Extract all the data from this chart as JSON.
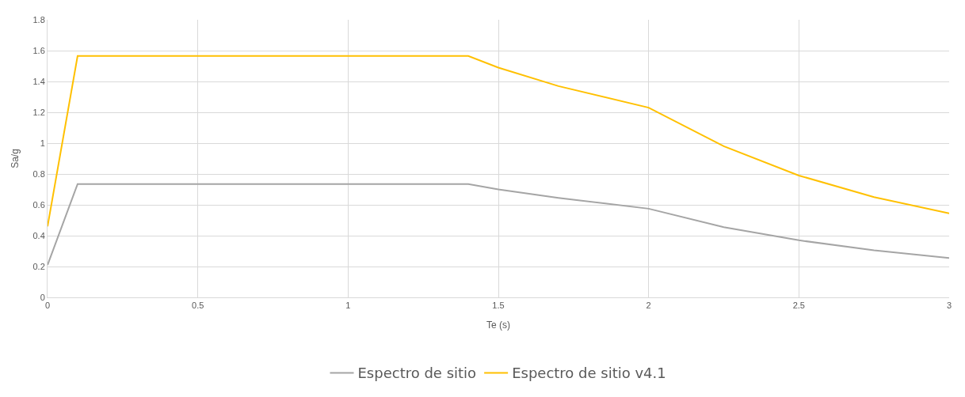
{
  "chart_data": {
    "type": "line",
    "xlabel": "Te (s)",
    "ylabel": "Sa/g",
    "xlim": [
      0,
      3
    ],
    "xticks": [
      0,
      0.5,
      1,
      1.5,
      2,
      2.5,
      3
    ],
    "ylim": [
      0,
      1.8
    ],
    "yticks": [
      0,
      0.2,
      0.4,
      0.6,
      0.8,
      1,
      1.2,
      1.4,
      1.6,
      1.8
    ],
    "grid": true,
    "legend": "bottom",
    "marker": "none",
    "line_style": "solid",
    "x": [
      0,
      0.1,
      1.4,
      1.5,
      1.7,
      2,
      2.25,
      2.5,
      2.75,
      3
    ],
    "series": [
      {
        "name": "Espectro de sitio",
        "color": "#a5a5a5",
        "values": [
          0.21,
          0.735,
          0.735,
          0.7,
          0.645,
          0.575,
          0.455,
          0.37,
          0.305,
          0.255
        ]
      },
      {
        "name": "Espectro de sitio v4.1",
        "color": "#ffc000",
        "values": [
          0.46,
          1.565,
          1.565,
          1.49,
          1.37,
          1.23,
          0.98,
          0.79,
          0.65,
          0.545
        ]
      }
    ]
  }
}
